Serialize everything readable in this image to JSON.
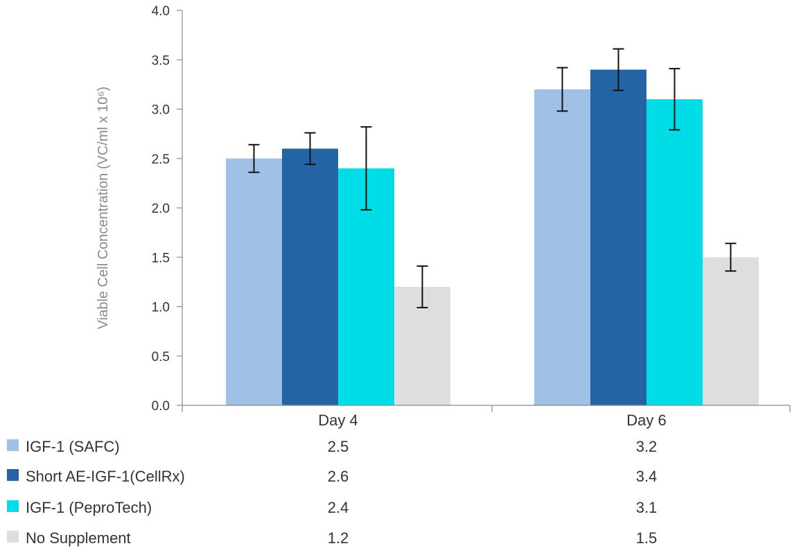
{
  "chart_data": {
    "type": "bar",
    "categories": [
      "Day 4",
      "Day 6"
    ],
    "ylabel": "Viable Cell Concentration (VC/ml x 10⁶)",
    "ylim": [
      0,
      4.0
    ],
    "yticks": [
      "0.0",
      "0.5",
      "1.0",
      "1.5",
      "2.0",
      "2.5",
      "3.0",
      "3.5",
      "4.0"
    ],
    "grid": false,
    "legend": "data-table-below",
    "series": [
      {
        "name": "IGF-1 (SAFC)",
        "color": "#9fc1e6",
        "values": [
          2.5,
          3.2
        ],
        "errors": [
          0.14,
          0.22
        ],
        "labels": [
          "2.5",
          "3.2"
        ]
      },
      {
        "name": "Short AE-IGF-1(CellRx)",
        "color": "#2464a4",
        "values": [
          2.6,
          3.4
        ],
        "errors": [
          0.16,
          0.21
        ],
        "labels": [
          "2.6",
          "3.4"
        ]
      },
      {
        "name": "IGF-1 (PeproTech)",
        "color": "#00dde6",
        "values": [
          2.4,
          3.1
        ],
        "errors": [
          0.42,
          0.31
        ],
        "labels": [
          "2.4",
          "3.1"
        ]
      },
      {
        "name": "No Supplement",
        "color": "#dedede",
        "values": [
          1.2,
          1.5
        ],
        "errors": [
          0.21,
          0.14
        ],
        "labels": [
          "1.2",
          "1.5"
        ]
      }
    ]
  }
}
